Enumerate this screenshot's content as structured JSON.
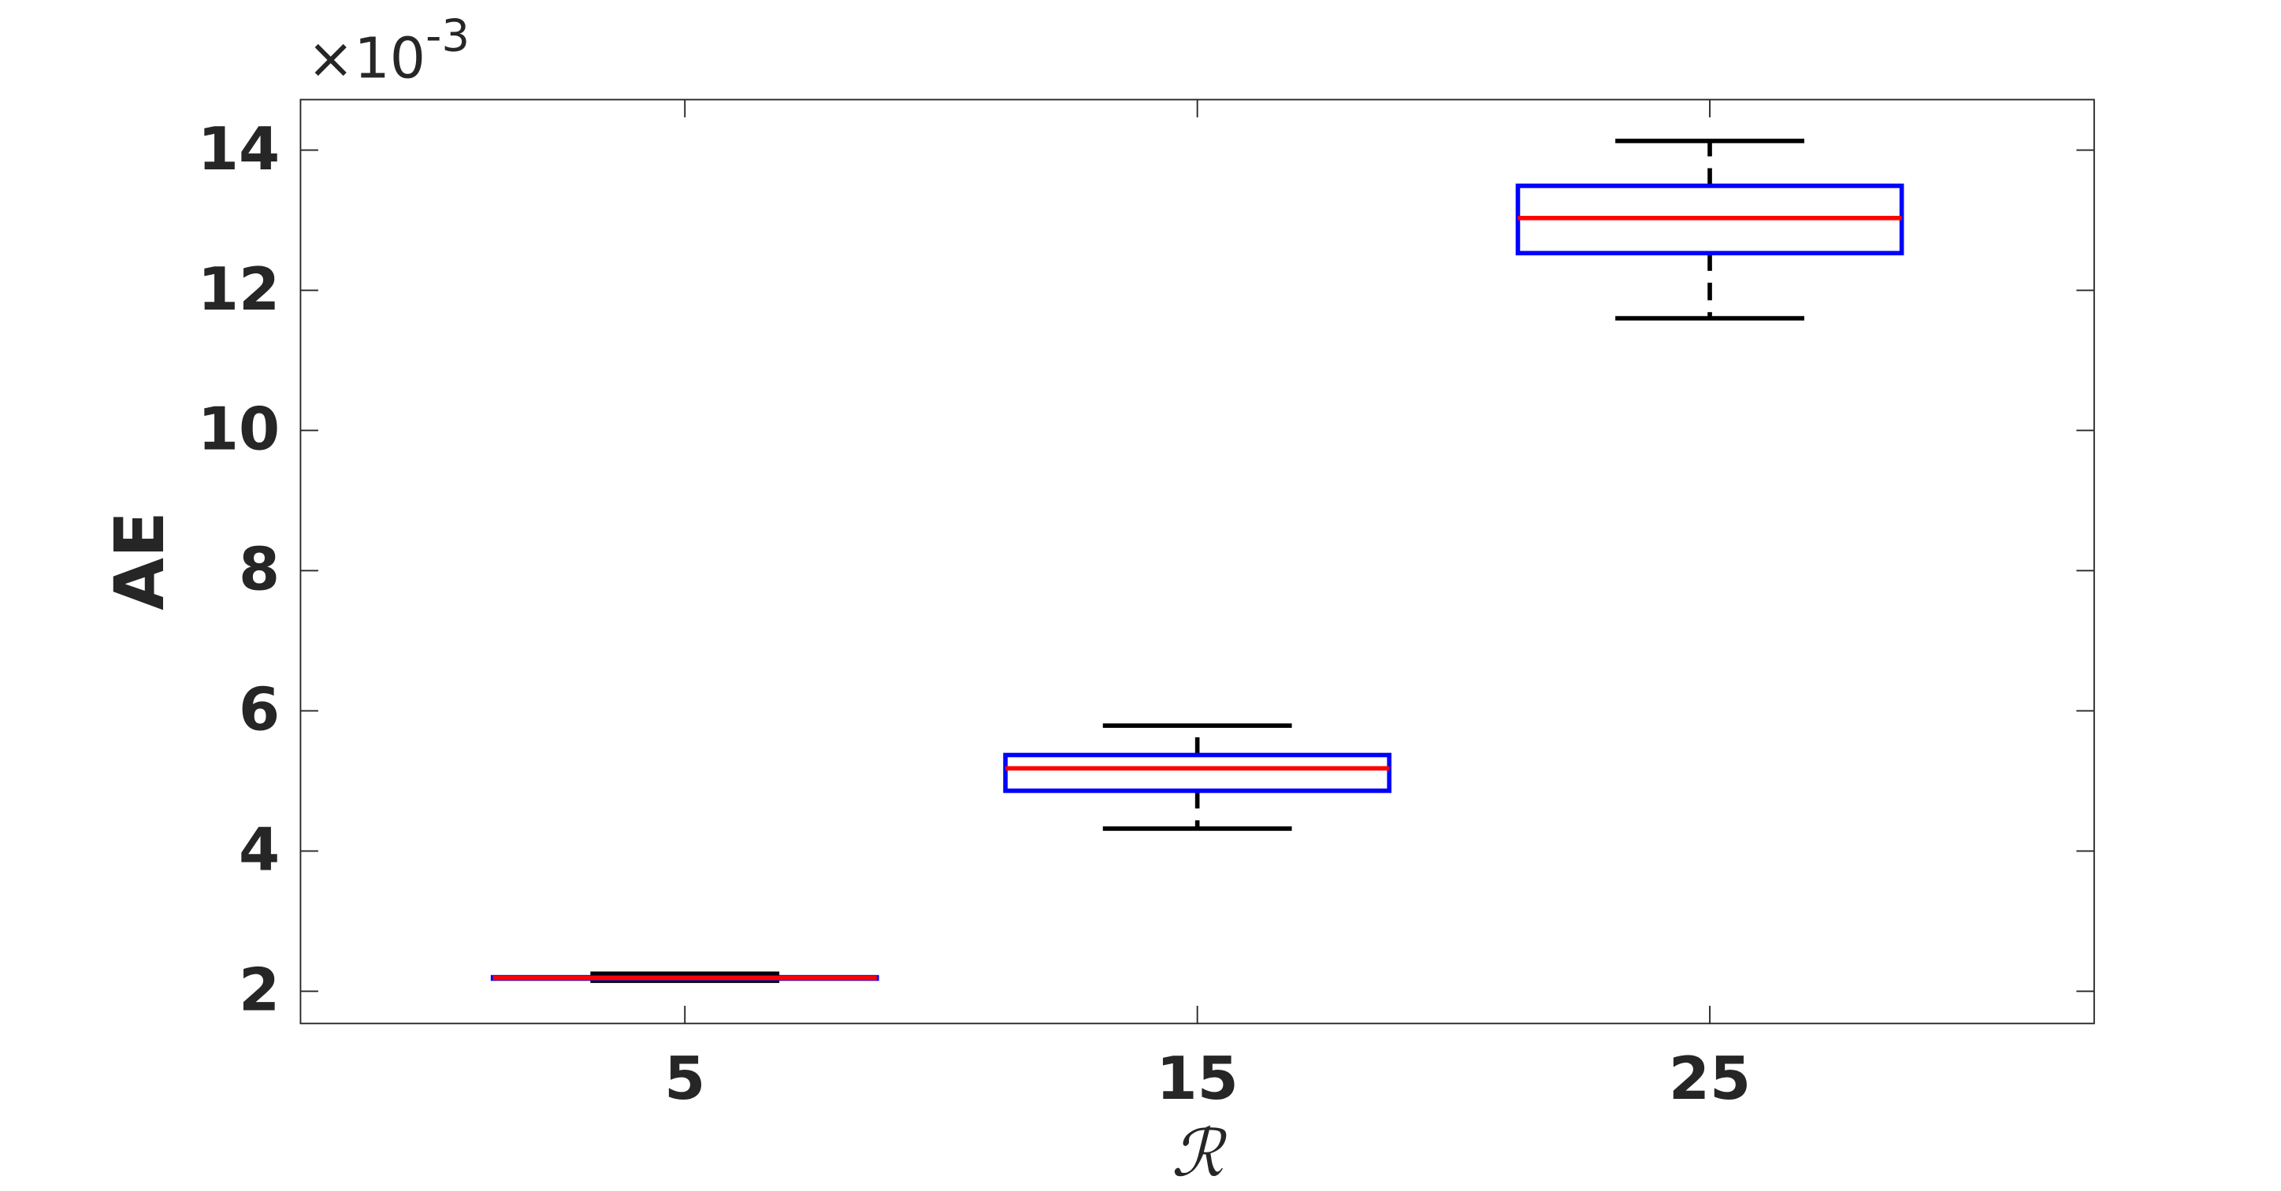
{
  "chart_data": {
    "type": "box",
    "categories": [
      "5",
      "15",
      "25"
    ],
    "boxes": [
      {
        "min": 2.15,
        "q1": 2.18,
        "median": 2.19,
        "q3": 2.2,
        "max": 2.25
      },
      {
        "min": 4.32,
        "q1": 4.86,
        "median": 5.18,
        "q3": 5.37,
        "max": 5.79
      },
      {
        "min": 11.6,
        "q1": 12.53,
        "median": 13.03,
        "q3": 13.49,
        "max": 14.13
      }
    ],
    "box_color": "#0000ff",
    "median_color": "#ff0000",
    "whisker_color": "#000000",
    "ylim": [
      1.54,
      14.72
    ],
    "yticks": [
      2,
      4,
      6,
      8,
      10,
      12,
      14
    ],
    "y_label": "AE",
    "x_label": "ℛ",
    "axis_multiplier": {
      "base": "×10",
      "exponent": "-3"
    },
    "grid": false
  }
}
